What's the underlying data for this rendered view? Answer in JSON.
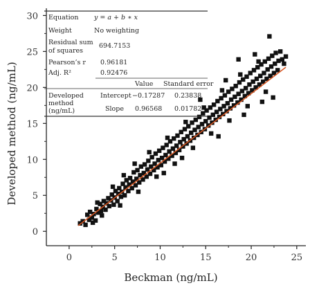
{
  "chart_data": {
    "type": "scatter",
    "title": "",
    "xlabel": "Beckman (ng/mL)",
    "ylabel": "Developed method (ng/mL)",
    "xlim": [
      -2.5,
      26
    ],
    "ylim": [
      -2,
      31
    ],
    "xticks": [
      0,
      5,
      10,
      15,
      20,
      25
    ],
    "yticks": [
      0,
      5,
      10,
      15,
      20,
      25,
      30
    ],
    "xtick_labels": [
      "0",
      "5",
      "10",
      "15",
      "20",
      "25"
    ],
    "ytick_labels": [
      "0",
      "5",
      "10",
      "15",
      "20",
      "25",
      "30"
    ],
    "grid": false,
    "colors": {
      "points": "#111111",
      "fit_line": "#d9541e",
      "axes": "#222222"
    },
    "series": [
      {
        "values": [
          [
            1.2,
            1.1
          ],
          [
            1.5,
            1.4
          ],
          [
            1.8,
            0.9
          ],
          [
            2.0,
            2.3
          ],
          [
            2.2,
            1.6
          ],
          [
            2.3,
            2.7
          ],
          [
            2.5,
            1.9
          ],
          [
            2.7,
            2.4
          ],
          [
            2.9,
            1.5
          ],
          [
            3.0,
            3.1
          ],
          [
            3.2,
            2.6
          ],
          [
            3.4,
            3.8
          ],
          [
            3.5,
            2.8
          ],
          [
            3.7,
            3.4
          ],
          [
            3.8,
            4.2
          ],
          [
            4.0,
            3.0
          ],
          [
            4.1,
            3.9
          ],
          [
            4.3,
            4.6
          ],
          [
            4.4,
            3.5
          ],
          [
            4.6,
            4.3
          ],
          [
            4.7,
            5.1
          ],
          [
            4.9,
            3.7
          ],
          [
            5.0,
            4.7
          ],
          [
            5.1,
            5.6
          ],
          [
            5.3,
            4.2
          ],
          [
            5.4,
            5.2
          ],
          [
            5.5,
            6.0
          ],
          [
            5.7,
            4.8
          ],
          [
            5.8,
            5.5
          ],
          [
            5.9,
            6.6
          ],
          [
            6.1,
            5.0
          ],
          [
            6.2,
            6.1
          ],
          [
            6.3,
            7.1
          ],
          [
            6.5,
            5.6
          ],
          [
            6.6,
            6.5
          ],
          [
            6.7,
            7.4
          ],
          [
            6.9,
            6.0
          ],
          [
            7.0,
            6.9
          ],
          [
            7.1,
            8.2
          ],
          [
            7.3,
            6.4
          ],
          [
            7.4,
            7.3
          ],
          [
            7.5,
            8.5
          ],
          [
            7.7,
            6.8
          ],
          [
            7.8,
            7.8
          ],
          [
            7.9,
            9.0
          ],
          [
            8.1,
            7.2
          ],
          [
            8.2,
            8.1
          ],
          [
            8.3,
            9.3
          ],
          [
            8.5,
            7.6
          ],
          [
            8.6,
            8.6
          ],
          [
            8.7,
            9.8
          ],
          [
            8.9,
            8.0
          ],
          [
            9.0,
            9.0
          ],
          [
            9.1,
            10.3
          ],
          [
            9.3,
            8.5
          ],
          [
            9.4,
            9.4
          ],
          [
            9.5,
            10.8
          ],
          [
            9.7,
            8.9
          ],
          [
            9.8,
            9.9
          ],
          [
            9.9,
            11.2
          ],
          [
            10.1,
            9.2
          ],
          [
            10.2,
            10.2
          ],
          [
            10.3,
            11.6
          ],
          [
            10.5,
            9.7
          ],
          [
            10.6,
            10.6
          ],
          [
            10.7,
            12.0
          ],
          [
            10.9,
            10.1
          ],
          [
            11.0,
            11.1
          ],
          [
            11.1,
            12.5
          ],
          [
            11.3,
            10.5
          ],
          [
            11.4,
            11.5
          ],
          [
            11.5,
            12.9
          ],
          [
            11.7,
            10.9
          ],
          [
            11.8,
            11.9
          ],
          [
            11.9,
            13.3
          ],
          [
            12.1,
            11.3
          ],
          [
            12.2,
            12.4
          ],
          [
            12.3,
            13.8
          ],
          [
            12.5,
            11.8
          ],
          [
            12.6,
            12.8
          ],
          [
            12.7,
            14.2
          ],
          [
            12.9,
            12.2
          ],
          [
            13.0,
            13.2
          ],
          [
            13.1,
            14.6
          ],
          [
            13.3,
            12.6
          ],
          [
            13.4,
            13.7
          ],
          [
            13.5,
            15.1
          ],
          [
            13.7,
            13.0
          ],
          [
            13.8,
            14.1
          ],
          [
            13.9,
            15.5
          ],
          [
            14.1,
            13.4
          ],
          [
            14.2,
            14.5
          ],
          [
            14.3,
            15.9
          ],
          [
            14.5,
            13.8
          ],
          [
            14.6,
            14.9
          ],
          [
            14.7,
            16.4
          ],
          [
            14.9,
            14.2
          ],
          [
            15.0,
            15.3
          ],
          [
            15.1,
            16.8
          ],
          [
            15.3,
            14.7
          ],
          [
            15.4,
            15.8
          ],
          [
            15.5,
            17.2
          ],
          [
            15.7,
            15.1
          ],
          [
            15.8,
            16.2
          ],
          [
            15.9,
            17.6
          ],
          [
            16.1,
            15.5
          ],
          [
            16.2,
            16.6
          ],
          [
            16.3,
            18.1
          ],
          [
            16.5,
            15.9
          ],
          [
            16.6,
            17.0
          ],
          [
            16.7,
            18.5
          ],
          [
            16.9,
            16.3
          ],
          [
            17.0,
            17.4
          ],
          [
            17.1,
            18.9
          ],
          [
            17.3,
            16.7
          ],
          [
            17.4,
            17.8
          ],
          [
            17.5,
            19.4
          ],
          [
            17.7,
            17.1
          ],
          [
            17.8,
            18.3
          ],
          [
            17.9,
            19.8
          ],
          [
            18.1,
            17.5
          ],
          [
            18.2,
            18.7
          ],
          [
            18.3,
            20.2
          ],
          [
            18.5,
            17.9
          ],
          [
            18.6,
            19.1
          ],
          [
            18.7,
            20.7
          ],
          [
            18.9,
            18.3
          ],
          [
            19.0,
            19.5
          ],
          [
            19.1,
            21.1
          ],
          [
            19.3,
            18.8
          ],
          [
            19.4,
            19.9
          ],
          [
            19.5,
            21.5
          ],
          [
            19.7,
            19.2
          ],
          [
            19.8,
            20.4
          ],
          [
            19.9,
            22.0
          ],
          [
            20.1,
            19.6
          ],
          [
            20.2,
            20.8
          ],
          [
            20.3,
            22.4
          ],
          [
            20.5,
            20.0
          ],
          [
            20.6,
            21.2
          ],
          [
            20.7,
            22.8
          ],
          [
            20.9,
            20.4
          ],
          [
            21.0,
            21.6
          ],
          [
            21.1,
            23.2
          ],
          [
            21.3,
            20.8
          ],
          [
            21.4,
            22.0
          ],
          [
            21.5,
            23.6
          ],
          [
            21.7,
            21.2
          ],
          [
            21.8,
            22.5
          ],
          [
            21.9,
            24.0
          ],
          [
            22.1,
            21.6
          ],
          [
            22.2,
            22.9
          ],
          [
            22.3,
            24.4
          ],
          [
            22.5,
            22.0
          ],
          [
            22.6,
            23.3
          ],
          [
            22.7,
            24.8
          ],
          [
            22.9,
            22.4
          ],
          [
            23.0,
            23.7
          ],
          [
            23.2,
            25.0
          ],
          [
            23.4,
            23.9
          ],
          [
            3.6,
            2.2
          ],
          [
            4.8,
            6.2
          ],
          [
            6.0,
            7.8
          ],
          [
            7.6,
            5.5
          ],
          [
            8.8,
            11.0
          ],
          [
            9.6,
            7.6
          ],
          [
            10.8,
            13.0
          ],
          [
            11.6,
            9.4
          ],
          [
            12.8,
            15.2
          ],
          [
            13.6,
            11.6
          ],
          [
            14.8,
            17.2
          ],
          [
            15.6,
            13.6
          ],
          [
            16.8,
            19.6
          ],
          [
            17.6,
            15.4
          ],
          [
            18.8,
            21.8
          ],
          [
            19.6,
            17.4
          ],
          [
            20.8,
            23.6
          ],
          [
            21.6,
            19.4
          ],
          [
            22.0,
            27.1
          ],
          [
            18.6,
            23.9
          ],
          [
            23.8,
            24.3
          ],
          [
            22.4,
            18.6
          ],
          [
            2.6,
            1.2
          ],
          [
            3.1,
            4.0
          ],
          [
            5.6,
            3.6
          ],
          [
            7.2,
            9.4
          ],
          [
            10.4,
            8.1
          ],
          [
            12.4,
            10.2
          ],
          [
            14.4,
            18.3
          ],
          [
            16.4,
            13.2
          ],
          [
            17.2,
            21.0
          ],
          [
            19.2,
            16.2
          ],
          [
            20.4,
            24.6
          ],
          [
            21.2,
            18.0
          ],
          [
            23.6,
            23.3
          ]
        ]
      }
    ],
    "fit_line": {
      "x": [
        1.0,
        23.8
      ],
      "intercept": -0.17287,
      "slope": 0.96568
    }
  },
  "stats_table": {
    "rows": [
      {
        "label": "Equation",
        "value": "y = a + b ∗ x"
      },
      {
        "label": "Weight",
        "value": "No weighting"
      },
      {
        "label_line1": "Residual sum",
        "label_line2": "of squares",
        "value": "694.7153"
      },
      {
        "label": "Pearson’s r",
        "value": "0.96181"
      },
      {
        "label": "Adj. R²",
        "value": "0.92476"
      }
    ],
    "param_headers": [
      "Value",
      "Standard error"
    ],
    "param_group_label": [
      "Developed",
      "method",
      "(ng/mL)"
    ],
    "params": [
      {
        "name": "Intercept",
        "value": "−0.17287",
        "std_error": "0.23838"
      },
      {
        "name": "Slope",
        "value": "0.96568",
        "std_error": "0.01782"
      }
    ]
  }
}
